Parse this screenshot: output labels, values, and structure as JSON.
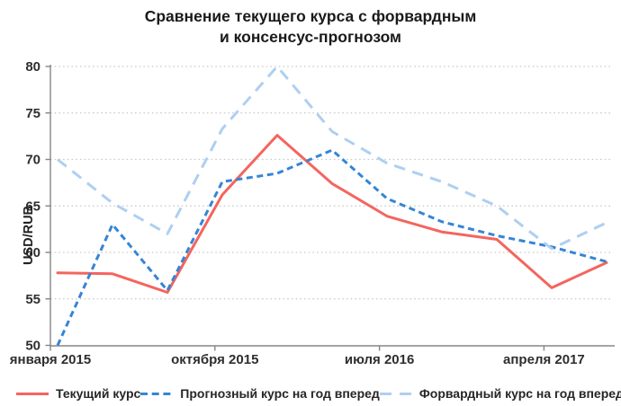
{
  "title_line1": "Сравнение текущего курса с форвардным",
  "title_line2": "и консенсус-прогнозом",
  "chart_data": {
    "type": "line",
    "title": "Сравнение текущего курса с форвардным и консенсус-прогнозом",
    "xlabel": "",
    "ylabel": "USD/RUB",
    "ylim": [
      50,
      80
    ],
    "y_ticks": [
      50,
      55,
      60,
      65,
      70,
      75,
      80
    ],
    "x_tick_labels": [
      "января 2015",
      "октября 2015",
      "июля 2016",
      "апреля 2017"
    ],
    "x_tick_point_indices": [
      0,
      3,
      6,
      9
    ],
    "num_points": 11,
    "grid": "dotted-horizontal",
    "legend_position": "bottom",
    "axis_color": "#858585",
    "grid_color": "#c9c9c9",
    "series": [
      {
        "name": "Текущий курс",
        "color": "#f4655e",
        "style": "solid",
        "values": [
          57.8,
          57.7,
          55.7,
          66.2,
          72.6,
          67.4,
          63.9,
          62.2,
          61.4,
          56.2,
          58.9
        ]
      },
      {
        "name": "Прогнозный курс на год вперед",
        "color": "#3585d6",
        "style": "dashed",
        "values": [
          50.0,
          63.0,
          55.9,
          67.6,
          68.5,
          71.0,
          65.8,
          63.3,
          61.8,
          60.6,
          59.0
        ]
      },
      {
        "name": "Форвардный курс на год вперед",
        "color": "#aecff1",
        "style": "long-dash",
        "values": [
          70.0,
          65.3,
          62.0,
          73.3,
          80.0,
          73.0,
          69.6,
          67.6,
          65.0,
          60.4,
          63.2
        ]
      }
    ]
  }
}
